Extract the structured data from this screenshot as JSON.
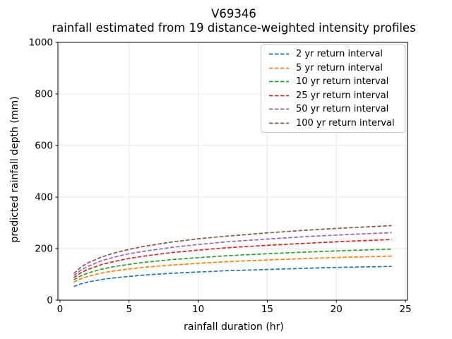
{
  "chart_data": {
    "type": "line",
    "title": "V69346",
    "subtitle": "rainfall estimated from 19 distance-weighted intensity profiles",
    "xlabel": "rainfall duration (hr)",
    "ylabel": "predicted rainfall depth (mm)",
    "xlim": [
      -0.15,
      25.15
    ],
    "ylim": [
      0,
      1000
    ],
    "xticks": [
      0,
      5,
      10,
      15,
      20,
      25
    ],
    "yticks": [
      0,
      200,
      400,
      600,
      800,
      1000
    ],
    "grid": true,
    "grid_color": "#e9e9e9",
    "line_style": "dashed",
    "legend_position": "upper right",
    "x": [
      1,
      1.5,
      2,
      3,
      4,
      5,
      6,
      8,
      10,
      12,
      15,
      18,
      21,
      24
    ],
    "series": [
      {
        "name": "2 yr return interval",
        "color": "#1f77b4",
        "values": [
          53,
          63,
          70,
          80,
          87,
          92,
          97,
          104,
          109,
          114,
          119,
          124,
          128,
          131
        ]
      },
      {
        "name": "5 yr return interval",
        "color": "#ff7f0e",
        "values": [
          70,
          83,
          92,
          105,
          114,
          121,
          127,
          136,
          143,
          149,
          156,
          162,
          167,
          171
        ]
      },
      {
        "name": "10 yr return interval",
        "color": "#2ca02c",
        "values": [
          79,
          94,
          105,
          120,
          131,
          139,
          146,
          157,
          165,
          172,
          180,
          187,
          193,
          198
        ]
      },
      {
        "name": "25 yr return interval",
        "color": "#d62728",
        "values": [
          87,
          106,
          119,
          138,
          151,
          162,
          170,
          184,
          194,
          203,
          213,
          221,
          229,
          235
        ]
      },
      {
        "name": "50 yr return interval",
        "color": "#9467bd",
        "values": [
          95,
          116,
          131,
          153,
          168,
          180,
          189,
          204,
          216,
          226,
          237,
          247,
          255,
          262
        ]
      },
      {
        "name": "100 yr return interval",
        "color": "#8c564b",
        "values": [
          103,
          127,
          144,
          167,
          184,
          197,
          208,
          225,
          238,
          248,
          261,
          272,
          281,
          289
        ]
      }
    ]
  }
}
